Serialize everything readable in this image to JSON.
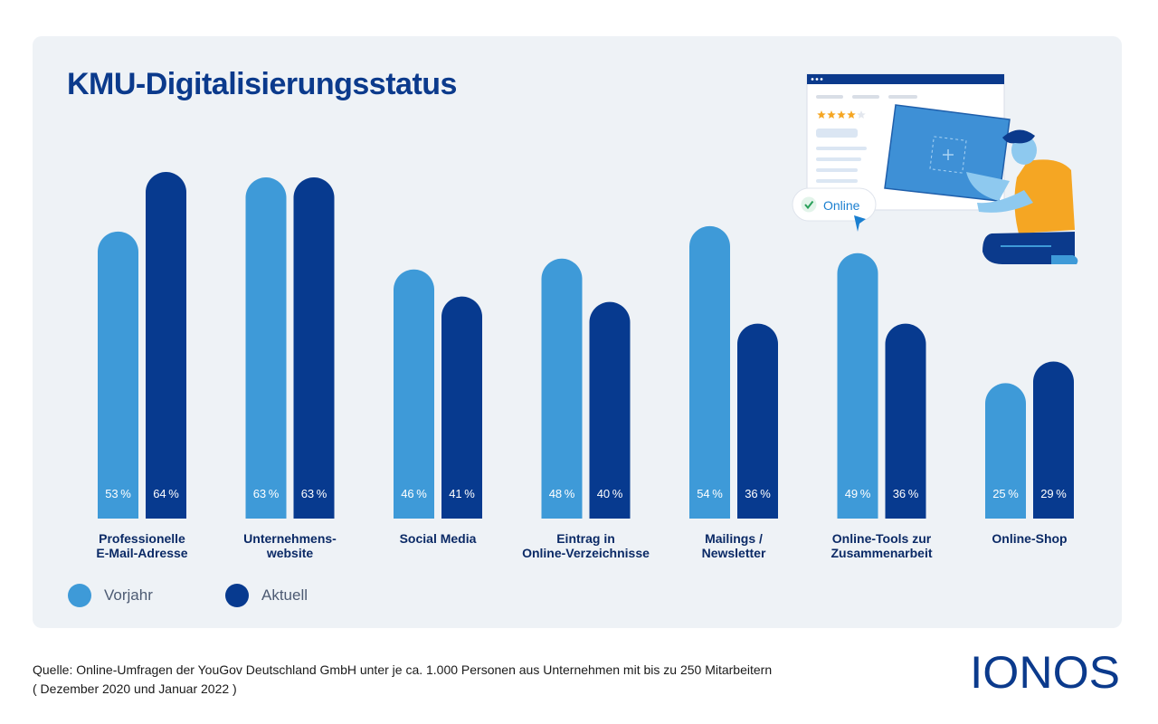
{
  "title": "KMU-Digitalisierungsstatus",
  "colors": {
    "vorjahr": "#3e9ad8",
    "aktuell": "#073a8f",
    "title": "#0b3a8c",
    "panel": "#eef2f6"
  },
  "legend": {
    "vorjahr": "Vorjahr",
    "aktuell": "Aktuell"
  },
  "illustration": {
    "badge_text": "Online",
    "rating_stars": 4,
    "icons": [
      "browser-window-icon",
      "check-icon",
      "cursor-icon",
      "person-illustration"
    ]
  },
  "chart_data": {
    "type": "bar",
    "title": "KMU-Digitalisierungsstatus",
    "unit": "%",
    "ylim": [
      0,
      64
    ],
    "grid": false,
    "legend_position": "bottom-left",
    "categories": [
      [
        "Professionelle",
        "E-Mail-Adresse"
      ],
      [
        "Unternehmens-",
        "website"
      ],
      [
        "Social Media"
      ],
      [
        "Eintrag in",
        "Online-Verzeichnisse"
      ],
      [
        "Mailings /",
        "Newsletter"
      ],
      [
        "Online-Tools zur",
        "Zusammenarbeit"
      ],
      [
        "Online-Shop"
      ]
    ],
    "series": [
      {
        "name": "Vorjahr",
        "values": [
          53,
          63,
          46,
          48,
          54,
          49,
          25
        ]
      },
      {
        "name": "Aktuell",
        "values": [
          64,
          63,
          41,
          40,
          36,
          36,
          29
        ]
      }
    ]
  },
  "source": {
    "line1": "Quelle: Online-Umfragen der YouGov Deutschland GmbH unter je ca. 1.000 Personen aus Unternehmen mit bis zu 250 Mitarbeitern",
    "line2": "( Dezember 2020 und Januar 2022 )"
  },
  "brand": {
    "logo_text": "IONOS"
  }
}
